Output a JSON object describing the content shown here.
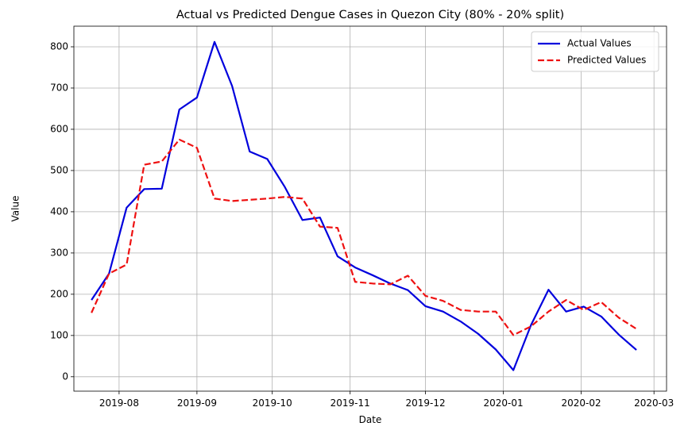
{
  "chart_data": {
    "type": "line",
    "title": "Actual vs Predicted Dengue Cases in Quezon City (80% - 20% split)",
    "xlabel": "Date",
    "ylabel": "Value",
    "x_axis_type": "date",
    "xlim": [
      "2019-07-14",
      "2020-03-06"
    ],
    "ylim": [
      -35,
      850
    ],
    "x_ticks": [
      "2019-08",
      "2019-09",
      "2019-10",
      "2019-11",
      "2019-12",
      "2020-01",
      "2020-02",
      "2020-03"
    ],
    "x_tick_dates": [
      "2019-08-01",
      "2019-09-01",
      "2019-10-01",
      "2019-11-01",
      "2019-12-01",
      "2020-01-01",
      "2020-02-01",
      "2020-03-01"
    ],
    "y_ticks": [
      0,
      100,
      200,
      300,
      400,
      500,
      600,
      700,
      800
    ],
    "grid": true,
    "legend_position": "top-right",
    "x": [
      "2019-07-21",
      "2019-07-28",
      "2019-08-04",
      "2019-08-11",
      "2019-08-18",
      "2019-08-25",
      "2019-09-01",
      "2019-09-08",
      "2019-09-15",
      "2019-09-22",
      "2019-09-29",
      "2019-10-06",
      "2019-10-13",
      "2019-10-20",
      "2019-10-27",
      "2019-11-03",
      "2019-11-10",
      "2019-11-17",
      "2019-11-24",
      "2019-12-01",
      "2019-12-08",
      "2019-12-15",
      "2019-12-22",
      "2019-12-29",
      "2020-01-05",
      "2020-01-12",
      "2020-01-19",
      "2020-01-26",
      "2020-02-02",
      "2020-02-09",
      "2020-02-16",
      "2020-02-23"
    ],
    "series": [
      {
        "name": "Actual Values",
        "color": "#0000dd",
        "style": "solid",
        "values": [
          186,
          250,
          410,
          455,
          456,
          648,
          677,
          812,
          705,
          546,
          528,
          460,
          380,
          386,
          292,
          265,
          246,
          226,
          210,
          171,
          158,
          134,
          104,
          66,
          16,
          125,
          211,
          158,
          170,
          146,
          102,
          65
        ]
      },
      {
        "name": "Predicted Values",
        "color": "#ee1111",
        "style": "dashed",
        "values": [
          155,
          250,
          272,
          514,
          522,
          575,
          555,
          432,
          426,
          429,
          432,
          436,
          432,
          364,
          361,
          230,
          226,
          224,
          245,
          196,
          184,
          162,
          158,
          158,
          101,
          122,
          158,
          186,
          162,
          181,
          143,
          116
        ]
      }
    ]
  }
}
